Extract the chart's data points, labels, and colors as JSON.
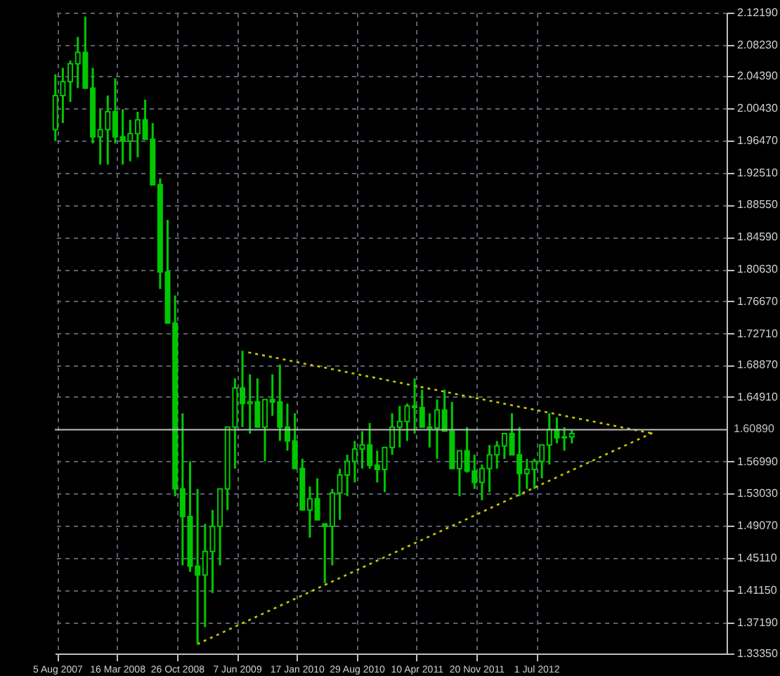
{
  "chart_data": {
    "type": "candlestick",
    "grid": true,
    "xlim": [
      "2007-07-27",
      "2014-06-13"
    ],
    "ylim": [
      1.3335,
      2.1219
    ],
    "xticks": [
      {
        "value": "2007-08-05",
        "label": "5 Aug 2007"
      },
      {
        "value": "2008-03-16",
        "label": "16 Mar 2008"
      },
      {
        "value": "2008-10-26",
        "label": "26 Oct 2008"
      },
      {
        "value": "2009-06-07",
        "label": "7 Jun 2009"
      },
      {
        "value": "2010-01-17",
        "label": "17 Jan 2010"
      },
      {
        "value": "2010-08-29",
        "label": "29 Aug 2010"
      },
      {
        "value": "2011-04-10",
        "label": "10 Apr 2011"
      },
      {
        "value": "2011-11-20",
        "label": "20 Nov 2011"
      },
      {
        "value": "2012-07-01",
        "label": "1 Jul 2012"
      }
    ],
    "yticks": [
      {
        "value": 1.3335,
        "label": "1.33350"
      },
      {
        "value": 1.3719,
        "label": "1.37190"
      },
      {
        "value": 1.4115,
        "label": "1.41150"
      },
      {
        "value": 1.4511,
        "label": "1.45110"
      },
      {
        "value": 1.4907,
        "label": "1.49070"
      },
      {
        "value": 1.5303,
        "label": "1.53030"
      },
      {
        "value": 1.5699,
        "label": "1.56990"
      },
      {
        "value": 1.6491,
        "label": "1.64910"
      },
      {
        "value": 1.6887,
        "label": "1.68870"
      },
      {
        "value": 1.7271,
        "label": "1.72710"
      },
      {
        "value": 1.7667,
        "label": "1.76670"
      },
      {
        "value": 1.8063,
        "label": "1.80630"
      },
      {
        "value": 1.8459,
        "label": "1.84590"
      },
      {
        "value": 1.8855,
        "label": "1.88550"
      },
      {
        "value": 1.9251,
        "label": "1.92510"
      },
      {
        "value": 1.9647,
        "label": "1.96470"
      },
      {
        "value": 2.0043,
        "label": "2.00430"
      },
      {
        "value": 2.0439,
        "label": "2.04390"
      },
      {
        "value": 2.0823,
        "label": "2.08230"
      },
      {
        "value": 2.1219,
        "label": "2.12190"
      }
    ],
    "ref_lines": [
      {
        "axis": "y",
        "value": 1.6089,
        "label": "1.60890",
        "color": "#c0c0c0"
      }
    ],
    "series": [
      {
        "type": "line",
        "color": "#c8c800",
        "line_style": "dotted",
        "x": [
          "2009-07-20",
          "2013-09-12"
        ],
        "values": [
          1.704,
          1.604
        ]
      },
      {
        "type": "line",
        "color": "#c8c800",
        "line_style": "dotted",
        "x": [
          "2009-01-10",
          "2013-09-22"
        ],
        "values": [
          1.345,
          1.607
        ]
      },
      {
        "color": "#00c800",
        "x": [
          "2007-07-29",
          "2007-08-26",
          "2007-09-23",
          "2007-10-21",
          "2007-11-18",
          "2007-12-16",
          "2008-01-13",
          "2008-02-10",
          "2008-03-09",
          "2008-04-06",
          "2008-05-04",
          "2008-06-01",
          "2008-06-29",
          "2008-07-27",
          "2008-08-24",
          "2008-09-21",
          "2008-10-19",
          "2008-11-16",
          "2008-12-14",
          "2009-01-11",
          "2009-02-08",
          "2009-03-08",
          "2009-04-05",
          "2009-05-03",
          "2009-05-31",
          "2009-06-28",
          "2009-07-26",
          "2009-08-23",
          "2009-09-20",
          "2009-10-18",
          "2009-11-15",
          "2009-12-13",
          "2010-01-10",
          "2010-02-07",
          "2010-03-07",
          "2010-04-04",
          "2010-05-02",
          "2010-05-30",
          "2010-06-27",
          "2010-07-25",
          "2010-08-22",
          "2010-09-19",
          "2010-10-17",
          "2010-11-14",
          "2010-12-12",
          "2011-01-09",
          "2011-02-06",
          "2011-03-06",
          "2011-04-03",
          "2011-05-01",
          "2011-05-29",
          "2011-06-26",
          "2011-07-24",
          "2011-08-21",
          "2011-09-18",
          "2011-10-16",
          "2011-11-13",
          "2011-12-11",
          "2012-01-08",
          "2012-02-05",
          "2012-03-04",
          "2012-04-01",
          "2012-04-29",
          "2012-05-27",
          "2012-06-24",
          "2012-07-22",
          "2012-08-19",
          "2012-09-16",
          "2012-10-14",
          "2012-11-11"
        ],
        "ohlc": [
          [
            1.978,
            2.046,
            1.964,
            2.02
          ],
          [
            2.02,
            2.054,
            1.986,
            2.037
          ],
          [
            2.037,
            2.063,
            2.012,
            2.059
          ],
          [
            2.059,
            2.092,
            2.029,
            2.073
          ],
          [
            2.073,
            2.117,
            2.029,
            2.029
          ],
          [
            2.029,
            2.054,
            1.961,
            1.969
          ],
          [
            1.969,
            2.003,
            1.935,
            1.978
          ],
          [
            1.978,
            2.02,
            1.935,
            2.0
          ],
          [
            2.0,
            2.041,
            1.961,
            1.969
          ],
          [
            1.969,
            2.003,
            1.935,
            1.964
          ],
          [
            1.964,
            1.99,
            1.939,
            1.973
          ],
          [
            1.973,
            2.0,
            1.944,
            1.99
          ],
          [
            1.99,
            2.015,
            1.966,
            1.966
          ],
          [
            1.966,
            1.986,
            1.91,
            1.91
          ],
          [
            1.91,
            1.918,
            1.782,
            1.803
          ],
          [
            1.803,
            1.867,
            1.74,
            1.74
          ],
          [
            1.74,
            1.774,
            1.527,
            1.536
          ],
          [
            1.536,
            1.629,
            1.442,
            1.502
          ],
          [
            1.502,
            1.57,
            1.434,
            1.441
          ],
          [
            1.441,
            1.536,
            1.345,
            1.43
          ],
          [
            1.43,
            1.493,
            1.366,
            1.459
          ],
          [
            1.459,
            1.51,
            1.408,
            1.49
          ],
          [
            1.49,
            1.536,
            1.442,
            1.536
          ],
          [
            1.536,
            1.612,
            1.51,
            1.612
          ],
          [
            1.612,
            1.672,
            1.561,
            1.66
          ],
          [
            1.66,
            1.706,
            1.612,
            1.641
          ],
          [
            1.641,
            1.677,
            1.604,
            1.643
          ],
          [
            1.643,
            1.672,
            1.612,
            1.612
          ],
          [
            1.612,
            1.646,
            1.57,
            1.646
          ],
          [
            1.646,
            1.677,
            1.626,
            1.643
          ],
          [
            1.643,
            1.689,
            1.595,
            1.612
          ],
          [
            1.612,
            1.641,
            1.583,
            1.595
          ],
          [
            1.595,
            1.629,
            1.561,
            1.561
          ],
          [
            1.561,
            1.573,
            1.51,
            1.51
          ],
          [
            1.51,
            1.539,
            1.476,
            1.524
          ],
          [
            1.524,
            1.549,
            1.498,
            1.498
          ],
          [
            1.493,
            1.493,
            1.42,
            1.49
          ],
          [
            1.49,
            1.536,
            1.442,
            1.531
          ],
          [
            1.531,
            1.561,
            1.498,
            1.553
          ],
          [
            1.553,
            1.578,
            1.527,
            1.57
          ],
          [
            1.57,
            1.595,
            1.544,
            1.585
          ],
          [
            1.585,
            1.607,
            1.561,
            1.59
          ],
          [
            1.59,
            1.617,
            1.561,
            1.565
          ],
          [
            1.565,
            1.583,
            1.544,
            1.56
          ],
          [
            1.56,
            1.587,
            1.532,
            1.587
          ],
          [
            1.587,
            1.629,
            1.578,
            1.612
          ],
          [
            1.612,
            1.638,
            1.587,
            1.619
          ],
          [
            1.619,
            1.641,
            1.595,
            1.638
          ],
          [
            1.638,
            1.672,
            1.604,
            1.636
          ],
          [
            1.636,
            1.658,
            1.612,
            1.612
          ],
          [
            1.612,
            1.629,
            1.587,
            1.611
          ],
          [
            1.611,
            1.646,
            1.573,
            1.633
          ],
          [
            1.633,
            1.658,
            1.607,
            1.607
          ],
          [
            1.607,
            1.643,
            1.561,
            1.561
          ],
          [
            1.561,
            1.583,
            1.527,
            1.583
          ],
          [
            1.583,
            1.612,
            1.556,
            1.558
          ],
          [
            1.558,
            1.578,
            1.536,
            1.544
          ],
          [
            1.544,
            1.566,
            1.522,
            1.561
          ],
          [
            1.561,
            1.59,
            1.532,
            1.578
          ],
          [
            1.578,
            1.595,
            1.561,
            1.589
          ],
          [
            1.589,
            1.604,
            1.573,
            1.604
          ],
          [
            1.604,
            1.629,
            1.578,
            1.578
          ],
          [
            1.578,
            1.612,
            1.527,
            1.555
          ],
          [
            1.555,
            1.573,
            1.536,
            1.56
          ],
          [
            1.56,
            1.573,
            1.536,
            1.57
          ],
          [
            1.57,
            1.59,
            1.549,
            1.59
          ],
          [
            1.59,
            1.629,
            1.566,
            1.609
          ],
          [
            1.609,
            1.624,
            1.592,
            1.599
          ],
          [
            1.599,
            1.612,
            1.583,
            1.6
          ],
          [
            1.6,
            1.609,
            1.592,
            1.604
          ]
        ]
      }
    ]
  }
}
